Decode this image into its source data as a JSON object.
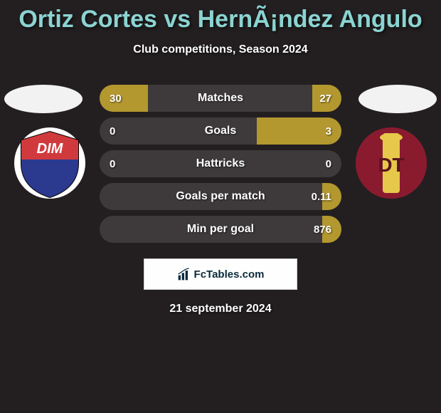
{
  "background_color": "#231f20",
  "title": {
    "text": "Ortiz Cortes vs HernÃ¡ndez Angulo",
    "color": "#8bd4d2",
    "fontsize": 34
  },
  "subtitle": "Club competitions, Season 2024",
  "photo_ellipse_color": "#f2f2f2",
  "left_team": {
    "crest_bg": "#ffffff",
    "shield_top": "#d03a3d",
    "shield_bottom": "#2b3a8f",
    "shield_text": "DIM",
    "shield_text_color": "#ffffff"
  },
  "right_team": {
    "crest_bg": "#8a1b2f",
    "column_color": "#e7c84a",
    "letters": "DT",
    "letters_color": "#5b1320"
  },
  "stat_row_style": {
    "base_color": "#3e3a3b",
    "left_accent": "#b3982f",
    "right_accent": "#b3982f",
    "label_color": "#ffffff",
    "value_color": "#ffffff",
    "height": 38,
    "radius": 19,
    "fontsize_label": 16,
    "fontsize_value": 15,
    "row_width": 340
  },
  "stats": [
    {
      "label": "Matches",
      "left_val": "30",
      "right_val": "27",
      "left_pct": 20,
      "right_pct": 12
    },
    {
      "label": "Goals",
      "left_val": "0",
      "right_val": "3",
      "left_pct": 0,
      "right_pct": 35
    },
    {
      "label": "Hattricks",
      "left_val": "0",
      "right_val": "0",
      "left_pct": 0,
      "right_pct": 0
    },
    {
      "label": "Goals per match",
      "left_val": "",
      "right_val": "0.11",
      "left_pct": 0,
      "right_pct": 8
    },
    {
      "label": "Min per goal",
      "left_val": "",
      "right_val": "876",
      "left_pct": 0,
      "right_pct": 8
    }
  ],
  "branding": {
    "text": "FcTables.com",
    "bg": "#fefefe",
    "border": "#cfcfcf",
    "color": "#0b2a3c"
  },
  "date_line": "21 september 2024"
}
